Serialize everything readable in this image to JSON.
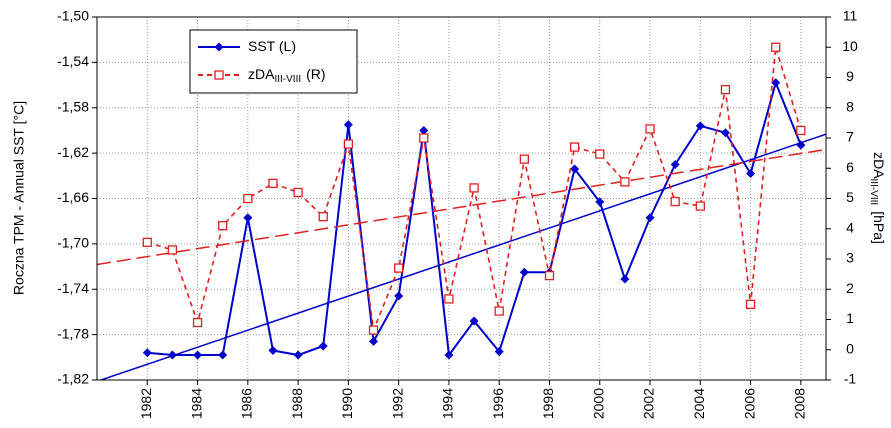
{
  "chart_data": {
    "type": "line",
    "x": [
      1982,
      1983,
      1984,
      1985,
      1986,
      1987,
      1988,
      1989,
      1990,
      1991,
      1992,
      1993,
      1994,
      1995,
      1996,
      1997,
      1998,
      1999,
      2000,
      2001,
      2002,
      2003,
      2004,
      2005,
      2006,
      2007,
      2008
    ],
    "xlim": [
      1980,
      2009
    ],
    "xticks": [
      1982,
      1984,
      1986,
      1988,
      1990,
      1992,
      1994,
      1996,
      1998,
      2000,
      2002,
      2004,
      2006,
      2008
    ],
    "ylim": [
      -1.82,
      -1.5
    ],
    "yticks": [
      {
        "value": -1.82,
        "label": "-1,82"
      },
      {
        "value": -1.78,
        "label": "-1,78"
      },
      {
        "value": -1.74,
        "label": "-1,74"
      },
      {
        "value": -1.7,
        "label": "-1,70"
      },
      {
        "value": -1.66,
        "label": "-1,66"
      },
      {
        "value": -1.62,
        "label": "-1,62"
      },
      {
        "value": -1.58,
        "label": "-1,58"
      },
      {
        "value": -1.54,
        "label": "-1,54"
      },
      {
        "value": -1.5,
        "label": "-1,50"
      }
    ],
    "y2lim": [
      -1,
      11
    ],
    "y2ticks": [
      -1,
      0,
      1,
      2,
      3,
      4,
      5,
      6,
      7,
      8,
      9,
      10,
      11
    ],
    "ylabel": "Roczna TPM - Annual SST [°C]",
    "y2label": "zDA",
    "y2label_sub": "III-VIII",
    "y2label_tail": "[hPa]",
    "grid": true,
    "legend": "top-left",
    "series": [
      {
        "name": "SST (L)",
        "color": "#0000cc",
        "marker": "diamond",
        "dash": "solid",
        "trendline": true,
        "values": [
          -1.796,
          -1.798,
          -1.798,
          -1.798,
          -1.677,
          -1.794,
          -1.798,
          -1.79,
          -1.595,
          -1.786,
          -1.746,
          -1.6,
          -1.798,
          -1.768,
          -1.795,
          -1.725,
          -1.725,
          -1.634,
          -1.663,
          -1.731,
          -1.677,
          -1.63,
          -1.596,
          -1.602,
          -1.638,
          -1.558,
          -1.613
        ]
      },
      {
        "name": "zDA",
        "name_sub": "III-VIII",
        "name_tail": "(R)",
        "color": "#e02020",
        "marker": "square",
        "dash": "dashed",
        "trendline": true,
        "axis": "y2",
        "values": [
          3.55,
          3.3,
          0.9,
          4.1,
          5.0,
          5.5,
          5.2,
          4.4,
          6.8,
          0.65,
          2.7,
          7.0,
          1.68,
          5.35,
          1.28,
          6.3,
          2.45,
          6.7,
          6.47,
          5.55,
          7.3,
          4.9,
          4.75,
          8.6,
          1.5,
          10.0,
          7.25
        ]
      }
    ]
  }
}
